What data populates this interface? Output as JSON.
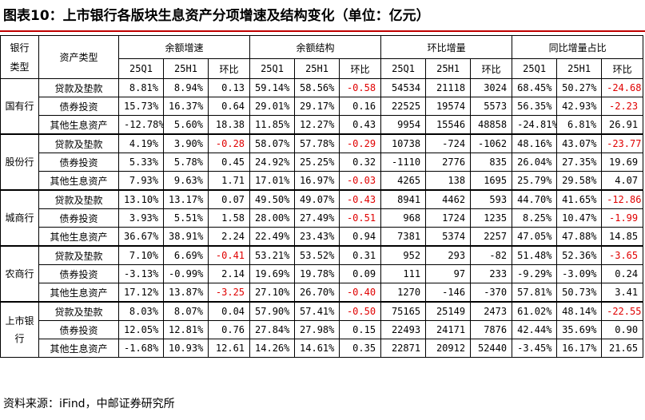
{
  "title": "图表10：上市银行各版块生息资产分项增速及结构变化（单位：亿元）",
  "headers": {
    "bank_type": "银行类型",
    "asset_type": "资产类型",
    "groups": [
      "余额增速",
      "余额结构",
      "环比增量",
      "同比增量占比"
    ],
    "sub": [
      "25Q1",
      "25H1",
      "环比"
    ]
  },
  "groups": [
    {
      "bank": "国有行",
      "rows": [
        {
          "cat": "贷款及垫款",
          "v": [
            "8.81%",
            "8.94%",
            "0.13",
            "59.14%",
            "58.56%",
            "-0.58",
            "54534",
            "21118",
            "3024",
            "68.45%",
            "50.27%",
            "-24.68"
          ]
        },
        {
          "cat": "债券投资",
          "v": [
            "15.73%",
            "16.37%",
            "0.64",
            "29.01%",
            "29.17%",
            "0.16",
            "22525",
            "19574",
            "5573",
            "56.35%",
            "42.93%",
            "-2.23"
          ]
        },
        {
          "cat": "其他生息资产",
          "v": [
            "-12.78%",
            "5.60%",
            "18.38",
            "11.85%",
            "12.27%",
            "0.43",
            "9954",
            "15546",
            "48858",
            "-24.81%",
            "6.81%",
            "26.91"
          ]
        }
      ]
    },
    {
      "bank": "股份行",
      "rows": [
        {
          "cat": "贷款及垫款",
          "v": [
            "4.19%",
            "3.90%",
            "-0.28",
            "58.07%",
            "57.78%",
            "-0.29",
            "10738",
            "-724",
            "-1062",
            "48.16%",
            "43.07%",
            "-23.77"
          ]
        },
        {
          "cat": "债券投资",
          "v": [
            "5.33%",
            "5.78%",
            "0.45",
            "24.92%",
            "25.25%",
            "0.32",
            "-1110",
            "2776",
            "835",
            "26.04%",
            "27.35%",
            "19.69"
          ]
        },
        {
          "cat": "其他生息资产",
          "v": [
            "7.93%",
            "9.63%",
            "1.71",
            "17.01%",
            "16.97%",
            "-0.03",
            "4265",
            "138",
            "1695",
            "25.79%",
            "29.58%",
            "4.07"
          ]
        }
      ]
    },
    {
      "bank": "城商行",
      "rows": [
        {
          "cat": "贷款及垫款",
          "v": [
            "13.10%",
            "13.17%",
            "0.07",
            "49.50%",
            "49.07%",
            "-0.43",
            "8941",
            "4462",
            "593",
            "44.70%",
            "41.65%",
            "-12.86"
          ]
        },
        {
          "cat": "债券投资",
          "v": [
            "3.93%",
            "5.51%",
            "1.58",
            "28.00%",
            "27.49%",
            "-0.51",
            "968",
            "1724",
            "1235",
            "8.25%",
            "10.47%",
            "-1.99"
          ]
        },
        {
          "cat": "其他生息资产",
          "v": [
            "36.67%",
            "38.91%",
            "2.24",
            "22.49%",
            "23.43%",
            "0.94",
            "7381",
            "5374",
            "2257",
            "47.05%",
            "47.88%",
            "14.85"
          ]
        }
      ]
    },
    {
      "bank": "农商行",
      "rows": [
        {
          "cat": "贷款及垫款",
          "v": [
            "7.10%",
            "6.69%",
            "-0.41",
            "53.21%",
            "53.52%",
            "0.31",
            "952",
            "293",
            "-82",
            "51.48%",
            "52.36%",
            "-3.65"
          ]
        },
        {
          "cat": "债券投资",
          "v": [
            "-3.13%",
            "-0.99%",
            "2.14",
            "19.69%",
            "19.78%",
            "0.09",
            "111",
            "97",
            "233",
            "-9.29%",
            "-3.09%",
            "0.24"
          ]
        },
        {
          "cat": "其他生息资产",
          "v": [
            "17.12%",
            "13.87%",
            "-3.25",
            "27.10%",
            "26.70%",
            "-0.40",
            "1270",
            "-146",
            "-370",
            "57.81%",
            "50.73%",
            "3.41"
          ]
        }
      ]
    },
    {
      "bank": "上市银行",
      "rows": [
        {
          "cat": "贷款及垫款",
          "v": [
            "8.03%",
            "8.07%",
            "0.04",
            "57.90%",
            "57.41%",
            "-0.50",
            "75165",
            "25149",
            "2473",
            "61.02%",
            "48.14%",
            "-22.55"
          ]
        },
        {
          "cat": "债券投资",
          "v": [
            "12.05%",
            "12.81%",
            "0.76",
            "27.84%",
            "27.98%",
            "0.15",
            "22493",
            "24171",
            "7876",
            "42.44%",
            "35.69%",
            "0.90"
          ]
        },
        {
          "cat": "其他生息资产",
          "v": [
            "-1.68%",
            "10.93%",
            "12.61",
            "14.26%",
            "14.61%",
            "0.35",
            "22871",
            "20912",
            "52440",
            "-3.45%",
            "16.17%",
            "21.65"
          ]
        }
      ]
    }
  ],
  "red_negative_columns": [
    2,
    5,
    11
  ],
  "colors": {
    "negative": "#e00000",
    "rule": "#c00000"
  },
  "source": "资料来源：iFind，中邮证券研究所"
}
